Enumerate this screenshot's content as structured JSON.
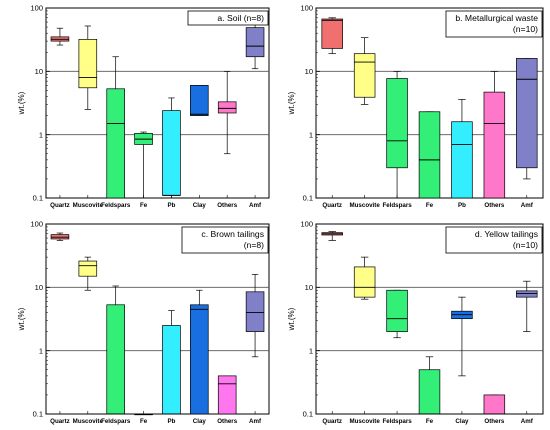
{
  "chart_data": [
    {
      "type": "box",
      "title": "a. Soil (n=8)",
      "title_lines": [
        "a. Soil (n=8)"
      ],
      "ylabel": "wt.(%)",
      "yscale": "log",
      "ylim": [
        0.1,
        100
      ],
      "yticks": [
        "0.1",
        "1",
        "10",
        "100"
      ],
      "grid": "horizontal at decades",
      "categories": [
        "Quartz",
        "Muscovite",
        "Feldspars",
        "Fe",
        "Pb",
        "Clay",
        "Others",
        "Amf"
      ],
      "boxes": [
        {
          "category": "Quartz",
          "color": "#f07070",
          "min": 26,
          "q1": 30,
          "median": 32,
          "q3": 35,
          "max": 48
        },
        {
          "category": "Muscovite",
          "color": "#ffff88",
          "min": 2.5,
          "q1": 5.5,
          "median": 8,
          "q3": 32,
          "max": 52
        },
        {
          "category": "Feldspars",
          "color": "#33ee77",
          "min": 0.1,
          "q1": 0.1,
          "median": 1.5,
          "q3": 5.3,
          "max": 17
        },
        {
          "category": "Fe",
          "color": "#33ee77",
          "min": 0.1,
          "q1": 0.7,
          "median": 0.85,
          "q3": 1.05,
          "max": 1.1
        },
        {
          "category": "Pb",
          "color": "#33eeff",
          "min": 0.1,
          "q1": 0.11,
          "median": 0.11,
          "q3": 2.4,
          "max": 3.8
        },
        {
          "category": "Clay",
          "color": "#1a6fe0",
          "min": 2,
          "q1": 2,
          "median": 2.1,
          "q3": 6,
          "max": 6
        },
        {
          "category": "Others",
          "color": "#ff77c8",
          "min": 0.5,
          "q1": 2.2,
          "median": 2.6,
          "q3": 3.3,
          "max": 10
        },
        {
          "category": "Amf",
          "color": "#8080c8",
          "min": 11,
          "q1": 17,
          "median": 25,
          "q3": 49,
          "max": 80
        }
      ]
    },
    {
      "type": "box",
      "title": "b. Metallurgical waste (n=10)",
      "title_lines": [
        "b. Metallurgical waste",
        "(n=10)"
      ],
      "ylabel": "wt.(%)",
      "yscale": "log",
      "ylim": [
        0.1,
        100
      ],
      "yticks": [
        "0.1",
        "1",
        "10",
        "100"
      ],
      "grid": "horizontal at decades",
      "categories": [
        "Quartz",
        "Muscovite",
        "Feldspars",
        "Fe",
        "Pb",
        "Others",
        "Amf"
      ],
      "boxes": [
        {
          "category": "Quartz",
          "color": "#f07070",
          "min": 19,
          "q1": 23,
          "median": 64,
          "q3": 67,
          "max": 70
        },
        {
          "category": "Muscovite",
          "color": "#ffff88",
          "min": 3,
          "q1": 3.9,
          "median": 14,
          "q3": 19,
          "max": 34
        },
        {
          "category": "Feldspars",
          "color": "#33ee77",
          "min": 0.1,
          "q1": 0.3,
          "median": 0.8,
          "q3": 7.7,
          "max": 10
        },
        {
          "category": "Fe",
          "color": "#33ee77",
          "min": 0.1,
          "q1": 0.1,
          "median": 0.4,
          "q3": 2.3,
          "max": 2.3
        },
        {
          "category": "Pb",
          "color": "#33eeff",
          "min": 0.1,
          "q1": 0.1,
          "median": 0.7,
          "q3": 1.6,
          "max": 3.6
        },
        {
          "category": "Others",
          "color": "#ff77c8",
          "min": 0.1,
          "q1": 0.1,
          "median": 1.5,
          "q3": 4.7,
          "max": 10
        },
        {
          "category": "Amf",
          "color": "#8080c8",
          "min": 0.2,
          "q1": 0.3,
          "median": 7.5,
          "q3": 16,
          "max": 16
        }
      ]
    },
    {
      "type": "box",
      "title": "c. Brown tailings (n=8)",
      "title_lines": [
        "c. Brown tailings",
        "(n=8)"
      ],
      "ylabel": "wt.(%)",
      "yscale": "log",
      "ylim": [
        0.1,
        100
      ],
      "yticks": [
        "0.1",
        "1",
        "10",
        "100"
      ],
      "grid": "horizontal at decades",
      "categories": [
        "Quartz",
        "Muscovite",
        "Feldspars",
        "Fe",
        "Pb",
        "Clay",
        "Others",
        "Amf"
      ],
      "boxes": [
        {
          "category": "Quartz",
          "color": "#f07070",
          "min": 55,
          "q1": 58,
          "median": 62,
          "q3": 68,
          "max": 72
        },
        {
          "category": "Muscovite",
          "color": "#ffff88",
          "min": 9,
          "q1": 15,
          "median": 22,
          "q3": 26,
          "max": 30
        },
        {
          "category": "Feldspars",
          "color": "#33ee77",
          "min": 0.1,
          "q1": 0.1,
          "median": 0.1,
          "q3": 5.3,
          "max": 10.5
        },
        {
          "category": "Fe",
          "color": "#33ee77",
          "min": 0.1,
          "q1": 0.1,
          "median": 0.1,
          "q3": 0.1,
          "max": 0.1
        },
        {
          "category": "Pb",
          "color": "#33eeff",
          "min": 0.1,
          "q1": 0.1,
          "median": 0.1,
          "q3": 2.5,
          "max": 4.3
        },
        {
          "category": "Clay",
          "color": "#1a6fe0",
          "min": 0.1,
          "q1": 0.1,
          "median": 4.5,
          "q3": 5.3,
          "max": 9
        },
        {
          "category": "Others",
          "color": "#ff77ee",
          "min": 0.1,
          "q1": 0.1,
          "median": 0.3,
          "q3": 0.4,
          "max": 0.4
        },
        {
          "category": "Amf",
          "color": "#8080c8",
          "min": 0.8,
          "q1": 2,
          "median": 4,
          "q3": 8.5,
          "max": 16
        }
      ]
    },
    {
      "type": "box",
      "title": "d. Yellow tailings (n=10)",
      "title_lines": [
        "d. Yellow tailings",
        "(n=10)"
      ],
      "ylabel": "wt.(%)",
      "yscale": "log",
      "ylim": [
        0.1,
        100
      ],
      "yticks": [
        "0.1",
        "1",
        "10",
        "100"
      ],
      "grid": "horizontal at decades",
      "categories": [
        "Quartz",
        "Muscovite",
        "Feldspars",
        "Fe",
        "Clay",
        "Others",
        "Amf"
      ],
      "boxes": [
        {
          "category": "Quartz",
          "color": "#f07070",
          "min": 55,
          "q1": 67,
          "median": 70,
          "q3": 73,
          "max": 76
        },
        {
          "category": "Muscovite",
          "color": "#ffff88",
          "min": 6.5,
          "q1": 7,
          "median": 10,
          "q3": 21,
          "max": 30
        },
        {
          "category": "Feldspars",
          "color": "#33ee77",
          "min": 1.6,
          "q1": 2,
          "median": 3.2,
          "q3": 9,
          "max": 9
        },
        {
          "category": "Fe",
          "color": "#33ee77",
          "min": 0.1,
          "q1": 0.1,
          "median": 0.1,
          "q3": 0.5,
          "max": 0.8
        },
        {
          "category": "Clay",
          "color": "#1a6fe0",
          "min": 0.4,
          "q1": 3.2,
          "median": 3.7,
          "q3": 4.2,
          "max": 7
        },
        {
          "category": "Others",
          "color": "#ff77c8",
          "min": 0.1,
          "q1": 0.1,
          "median": 0.1,
          "q3": 0.2,
          "max": 0.2
        },
        {
          "category": "Amf",
          "color": "#8080c8",
          "min": 2,
          "q1": 7,
          "median": 8,
          "q3": 8.8,
          "max": 12.5
        }
      ]
    }
  ]
}
